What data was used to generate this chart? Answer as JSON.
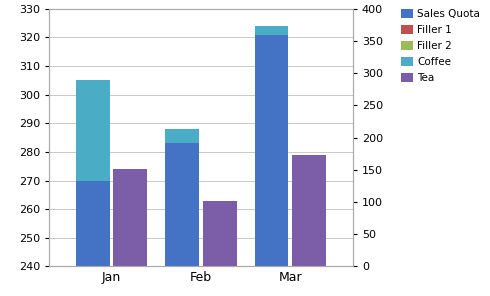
{
  "categories": [
    "Jan",
    "Feb",
    "Mar"
  ],
  "sales_quota": [
    270,
    288,
    324
  ],
  "coffee_total": [
    305,
    283,
    321
  ],
  "tea": [
    274,
    263,
    279
  ],
  "left_ylim": [
    240,
    330
  ],
  "right_ylim": [
    0,
    400
  ],
  "left_yticks": [
    240,
    250,
    260,
    270,
    280,
    290,
    300,
    310,
    320,
    330
  ],
  "right_yticks": [
    0,
    50,
    100,
    150,
    200,
    250,
    300,
    350,
    400
  ],
  "color_sales_quota": "#4472C4",
  "color_coffee": "#4BACC6",
  "color_tea": "#7B5EA7",
  "color_filler1": "#C0504D",
  "color_filler2": "#9BBB59",
  "bar_width": 0.38,
  "bar_gap": 0.04,
  "bg_color": "#FFFFFF",
  "grid_color": "#C0C0C0",
  "legend_labels": [
    "Sales Quota",
    "Filler 1",
    "Filler 2",
    "Coffee",
    "Tea"
  ],
  "legend_colors": [
    "#4472C4",
    "#C0504D",
    "#9BBB59",
    "#4BACC6",
    "#7B5EA7"
  ]
}
